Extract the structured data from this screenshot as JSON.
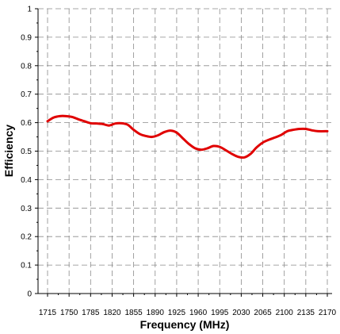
{
  "chart_data": {
    "type": "line",
    "title": "",
    "xlabel": "Frequency (MHz)",
    "ylabel": "Efficiency",
    "xlim": [
      1715,
      2170
    ],
    "ylim": [
      0,
      1
    ],
    "x_ticks": [
      1715,
      1750,
      1785,
      1820,
      1855,
      1890,
      1925,
      1960,
      1995,
      2030,
      2065,
      2100,
      2135,
      2170
    ],
    "y_ticks": [
      0,
      0.1,
      0.2,
      0.3,
      0.4,
      0.5,
      0.6,
      0.7,
      0.8,
      0.9,
      1
    ],
    "grid": true,
    "series": [
      {
        "color": "#e00000",
        "x": [
          1715,
          1725,
          1735,
          1745,
          1755,
          1765,
          1775,
          1785,
          1795,
          1805,
          1815,
          1825,
          1835,
          1845,
          1855,
          1865,
          1875,
          1885,
          1895,
          1905,
          1915,
          1925,
          1935,
          1945,
          1955,
          1965,
          1975,
          1985,
          1995,
          2005,
          2015,
          2025,
          2035,
          2045,
          2055,
          2065,
          2075,
          2085,
          2095,
          2105,
          2115,
          2125,
          2135,
          2145,
          2155,
          2170
        ],
        "y": [
          0.605,
          0.618,
          0.623,
          0.623,
          0.62,
          0.612,
          0.605,
          0.598,
          0.597,
          0.595,
          0.59,
          0.597,
          0.598,
          0.593,
          0.575,
          0.56,
          0.553,
          0.55,
          0.556,
          0.567,
          0.572,
          0.565,
          0.545,
          0.525,
          0.51,
          0.505,
          0.51,
          0.518,
          0.515,
          0.503,
          0.49,
          0.48,
          0.478,
          0.49,
          0.513,
          0.53,
          0.54,
          0.548,
          0.557,
          0.57,
          0.575,
          0.578,
          0.578,
          0.573,
          0.57,
          0.57
        ]
      }
    ]
  }
}
